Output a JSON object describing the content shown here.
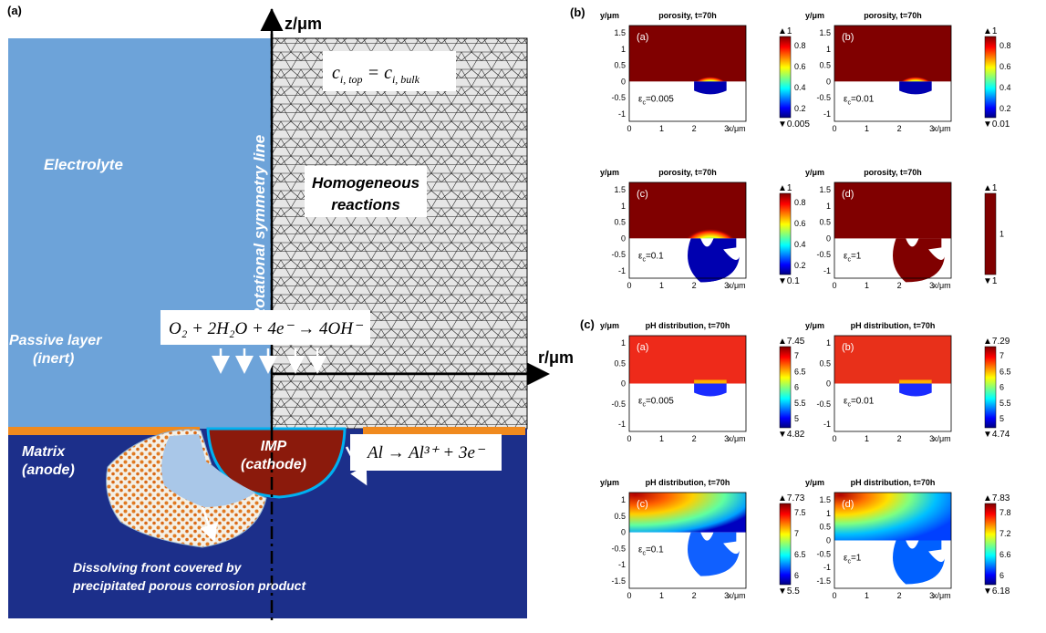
{
  "panel_a": {
    "label": "(a)",
    "z_axis": "z/μm",
    "r_axis": "r/μm",
    "symmetry": "Rotational symmetry line",
    "electrolyte": "Electrolyte",
    "homog_line1": "Homogeneous",
    "homog_line2": "reactions",
    "bc": {
      "c": "c",
      "sub_top": "i, top",
      "eq": " = ",
      "sub_bulk": "i, bulk"
    },
    "passive_line1": "Passive layer",
    "passive_line2": "(inert)",
    "matrix_line1": "Matrix",
    "matrix_line2": "(anode)",
    "imp_line1": "IMP",
    "imp_line2": "(cathode)",
    "cathodic_rxn": "O₂ + 2H₂O + 4e⁻ → 4OH⁻",
    "anodic_rxn": "Al → Al³⁺ + 3e⁻",
    "front_line1": "Dissolving front covered by",
    "front_line2": "precipitated porous corrosion product",
    "colors": {
      "electrolyte": "#6da3d9",
      "matrix": "#1c2f8a",
      "passive": "#f08a1e",
      "imp": "#8b1a0c",
      "pit": "#a9c7e8"
    }
  },
  "panel_b": {
    "label": "(b)",
    "plots": [
      {
        "tag": "(a)",
        "title": "porosity, t=70h",
        "eps_sym": "ε",
        "eps_sub": "c",
        "eps_val": "=0.005",
        "max": "▲1",
        "min": "▼0.005",
        "cbar_ticks": [
          "0.8",
          "0.6",
          "0.4",
          "0.2"
        ],
        "yticks": [
          "1.5",
          "1",
          "0.5",
          "0",
          "-0.5",
          "-1"
        ],
        "xticks": [
          "0",
          "1",
          "2",
          "3"
        ],
        "ylabel": "y/μm",
        "xlabel": "x/μm"
      },
      {
        "tag": "(b)",
        "title": "porosity, t=70h",
        "eps_sym": "ε",
        "eps_sub": "c",
        "eps_val": "=0.01",
        "max": "▲1",
        "min": "▼0.01",
        "cbar_ticks": [
          "0.8",
          "0.6",
          "0.4",
          "0.2"
        ],
        "yticks": [
          "1.5",
          "1",
          "0.5",
          "0",
          "-0.5",
          "-1"
        ],
        "xticks": [
          "0",
          "1",
          "2",
          "3"
        ],
        "ylabel": "y/μm",
        "xlabel": "x/μm"
      },
      {
        "tag": "(c)",
        "title": "porosity, t=70h",
        "eps_sym": "ε",
        "eps_sub": "c",
        "eps_val": "=0.1",
        "max": "▲1",
        "min": "▼0.1",
        "cbar_ticks": [
          "0.8",
          "0.6",
          "0.4",
          "0.2"
        ],
        "yticks": [
          "1.5",
          "1",
          "0.5",
          "0",
          "-0.5",
          "-1"
        ],
        "xticks": [
          "0",
          "1",
          "2",
          "3"
        ],
        "ylabel": "y/μm",
        "xlabel": "x/μm"
      },
      {
        "tag": "(d)",
        "title": "porosity, t=70h",
        "eps_sym": "ε",
        "eps_sub": "c",
        "eps_val": "=1",
        "max": "▲1",
        "min": "▼1",
        "cbar_ticks": [
          "1"
        ],
        "yticks": [
          "1.5",
          "1",
          "0.5",
          "0",
          "-0.5",
          "-1"
        ],
        "xticks": [
          "0",
          "1",
          "2",
          "3"
        ],
        "ylabel": "y/μm",
        "xlabel": "x/μm"
      }
    ]
  },
  "panel_c": {
    "label": "(c)",
    "plots": [
      {
        "tag": "(a)",
        "title": "pH distribution, t=70h",
        "eps_sym": "ε",
        "eps_sub": "c",
        "eps_val": "=0.005",
        "max": "▲7.45",
        "min": "▼4.82",
        "cbar_ticks": [
          "7",
          "6.5",
          "6",
          "5.5",
          "5"
        ],
        "yticks": [
          "1",
          "0.5",
          "0",
          "-0.5",
          "-1"
        ],
        "xticks": [
          "0",
          "1",
          "2",
          "3"
        ],
        "ylabel": "y/μm",
        "xlabel": "x/μm"
      },
      {
        "tag": "(b)",
        "title": "pH distribution, t=70h",
        "eps_sym": "ε",
        "eps_sub": "c",
        "eps_val": "=0.01",
        "max": "▲7.29",
        "min": "▼4.74",
        "cbar_ticks": [
          "7",
          "6.5",
          "6",
          "5.5",
          "5"
        ],
        "yticks": [
          "1",
          "0.5",
          "0",
          "-0.5",
          "-1"
        ],
        "xticks": [
          "0",
          "1",
          "2",
          "3"
        ],
        "ylabel": "y/μm",
        "xlabel": "x/μm"
      },
      {
        "tag": "(c)",
        "title": "pH distribution, t=70h",
        "eps_sym": "ε",
        "eps_sub": "c",
        "eps_val": "=0.1",
        "max": "▲7.73",
        "min": "▼5.5",
        "cbar_ticks": [
          "7.5",
          "7",
          "6.5",
          "6"
        ],
        "yticks": [
          "1",
          "0.5",
          "0",
          "-0.5",
          "-1",
          "-1.5"
        ],
        "xticks": [
          "0",
          "1",
          "2",
          "3"
        ],
        "ylabel": "y/μm",
        "xlabel": "x/μm"
      },
      {
        "tag": "(d)",
        "title": "pH distribution, t=70h",
        "eps_sym": "ε",
        "eps_sub": "c",
        "eps_val": "=1",
        "max": "▲7.83",
        "min": "▼6.18",
        "cbar_ticks": [
          "7.8",
          "7.2",
          "6.6",
          "6"
        ],
        "yticks": [
          "1.5",
          "1",
          "0.5",
          "0",
          "-0.5",
          "-1",
          "-1.5"
        ],
        "xticks": [
          "0",
          "1",
          "2",
          "3"
        ],
        "ylabel": "y/μm",
        "xlabel": "x/μm"
      }
    ]
  }
}
